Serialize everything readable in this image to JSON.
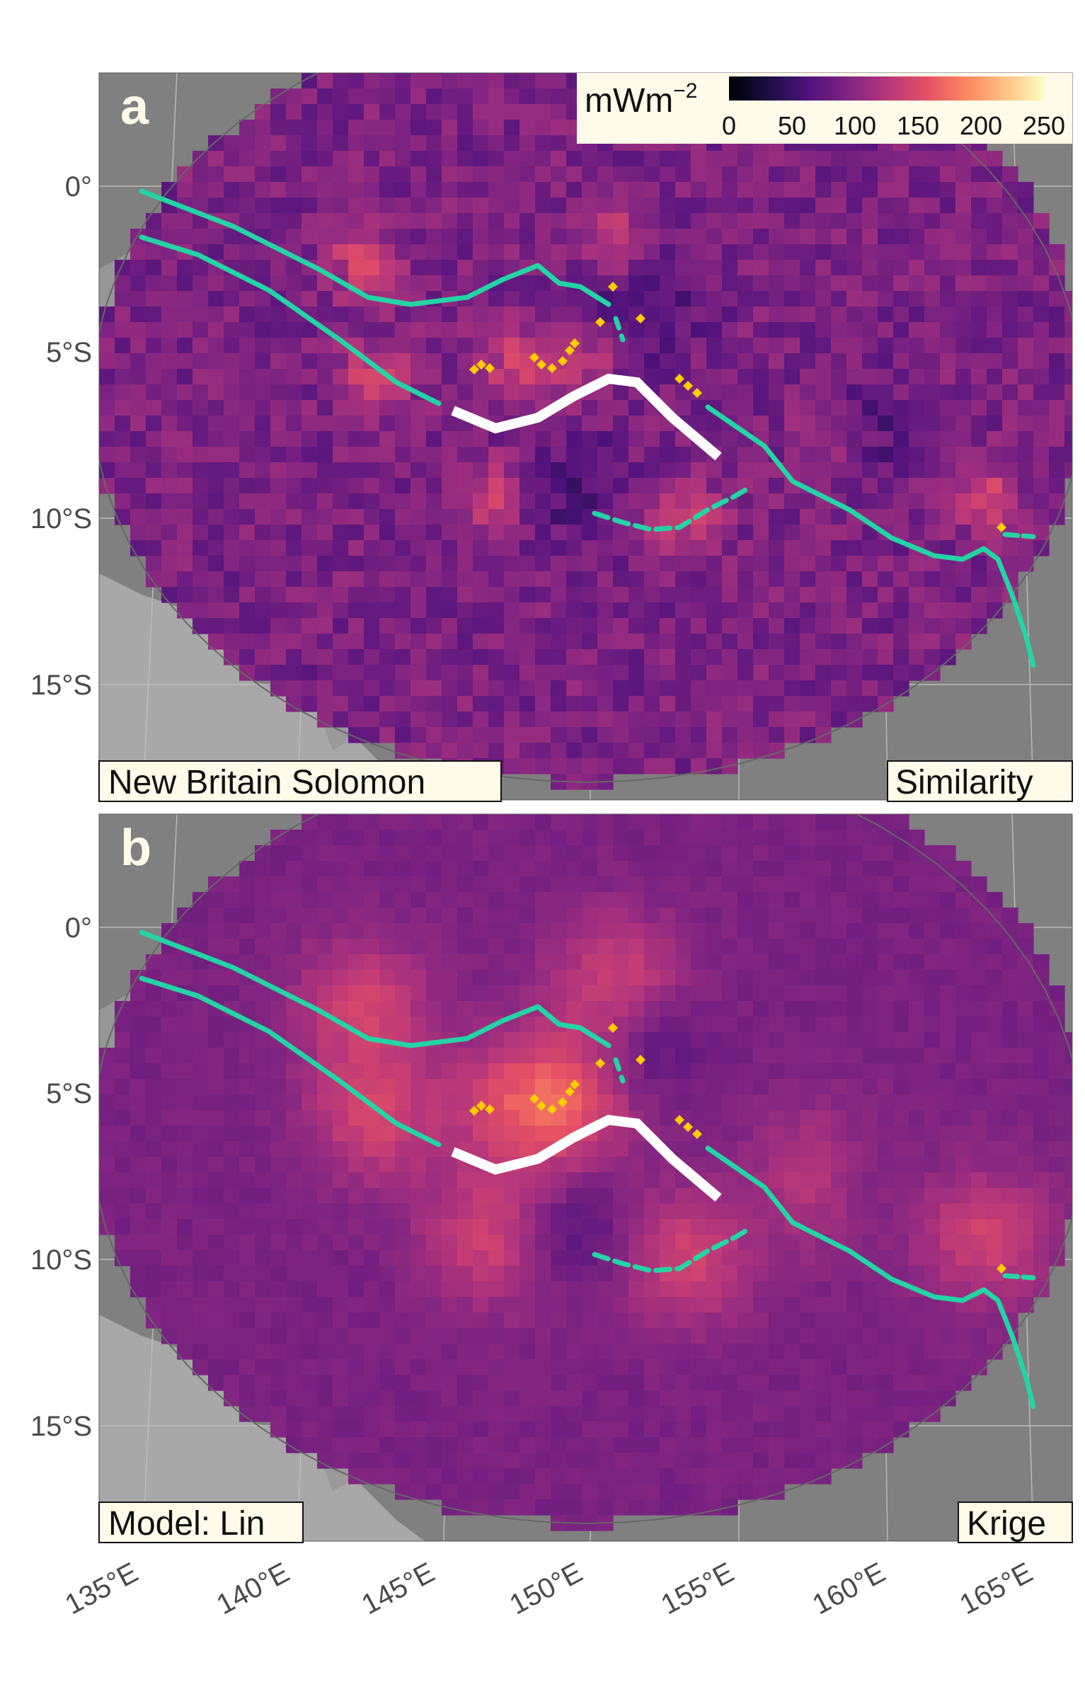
{
  "legend": {
    "unit_base": "mWm",
    "unit_exp": "−2",
    "ticks": [
      "0",
      "50",
      "100",
      "150",
      "200",
      "250"
    ]
  },
  "axes": {
    "lat_labels": [
      "0°",
      "5°S",
      "10°S",
      "15°S"
    ],
    "lon_labels": [
      "135°E",
      "140°E",
      "145°E",
      "150°E",
      "155°E",
      "160°E",
      "165°E"
    ]
  },
  "panels": [
    {
      "letter": "a",
      "left_label": "New Britain Solomon",
      "right_label": "Similarity",
      "style": "similarity"
    },
    {
      "letter": "b",
      "left_label": "Model: Lin",
      "right_label": "Krige",
      "style": "krige"
    }
  ],
  "colors": {
    "ocean_bg": "#808080",
    "land": "#a8a8a8",
    "trench": "#24d4a4",
    "segment": "#ffffff",
    "volcano": "#ffcc00",
    "label_bg": "#fffbe8"
  },
  "icons": {
    "volcano_marker": "diamond-icon"
  }
}
